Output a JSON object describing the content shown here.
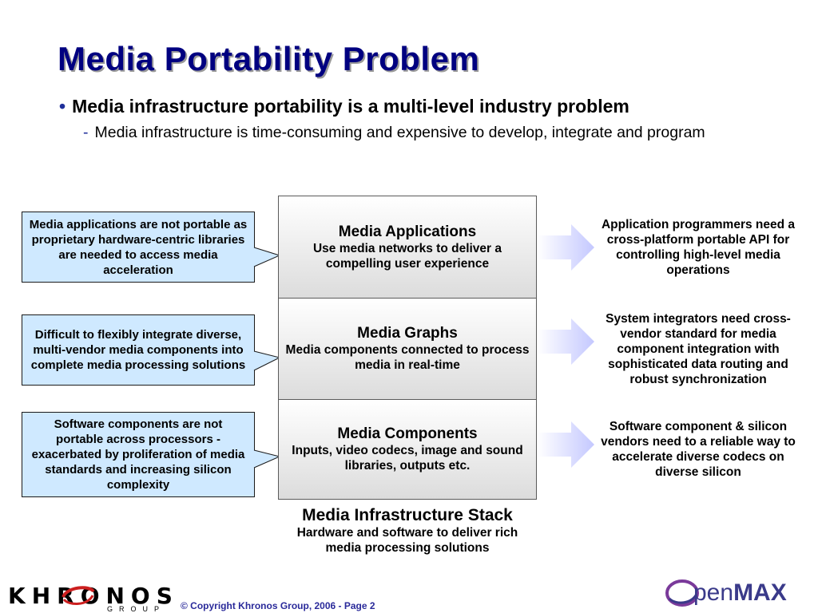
{
  "slide": {
    "title": "Media Portability Problem",
    "bullet": "Media infrastructure portability is a multi-level industry problem",
    "sub_bullet": "Media infrastructure is time-consuming and expensive to develop, integrate and program",
    "bullet_marker": "•",
    "sub_marker": "-"
  },
  "callouts": [
    {
      "text": "Media applications are not portable as proprietary hardware-centric libraries are needed to access media acceleration"
    },
    {
      "text": "Difficult to flexibly integrate diverse, multi-vendor media components into complete media processing solutions"
    },
    {
      "text": "Software components are not portable across processors - exacerbated by proliferation of media standards and increasing silicon complexity"
    }
  ],
  "stack": {
    "layers": [
      {
        "title": "Media Applications",
        "desc": "Use media networks to deliver a compelling user experience"
      },
      {
        "title": "Media Graphs",
        "desc": "Media components connected to process media in real-time"
      },
      {
        "title": "Media Components",
        "desc": "Inputs, video codecs, image and sound libraries, outputs etc."
      }
    ],
    "caption_title": "Media Infrastructure Stack",
    "caption_sub": "Hardware and software to deliver rich media processing solutions"
  },
  "needs": [
    {
      "text": "Application programmers need a cross-platform portable API for controlling high-level media operations"
    },
    {
      "text": "System integrators need cross-vendor standard for media component integration with sophisticated data routing and robust synchronization"
    },
    {
      "text": "Software component & silicon vendors need to a reliable way to accelerate diverse codecs on diverse silicon"
    }
  ],
  "footer": {
    "copyright": "© Copyright Khronos Group, 2006 - Page 2",
    "khronos_logo_text": "KHRONOS",
    "khronos_group_text": "GROUP",
    "openmax_logo_text_1": "pen",
    "openmax_logo_text_2": "MAX"
  },
  "colors": {
    "title": "#000080",
    "callout_fill": "#cfe9ff",
    "arrow_fill": "#cdd0ff",
    "accent": "#1f2f9a"
  }
}
